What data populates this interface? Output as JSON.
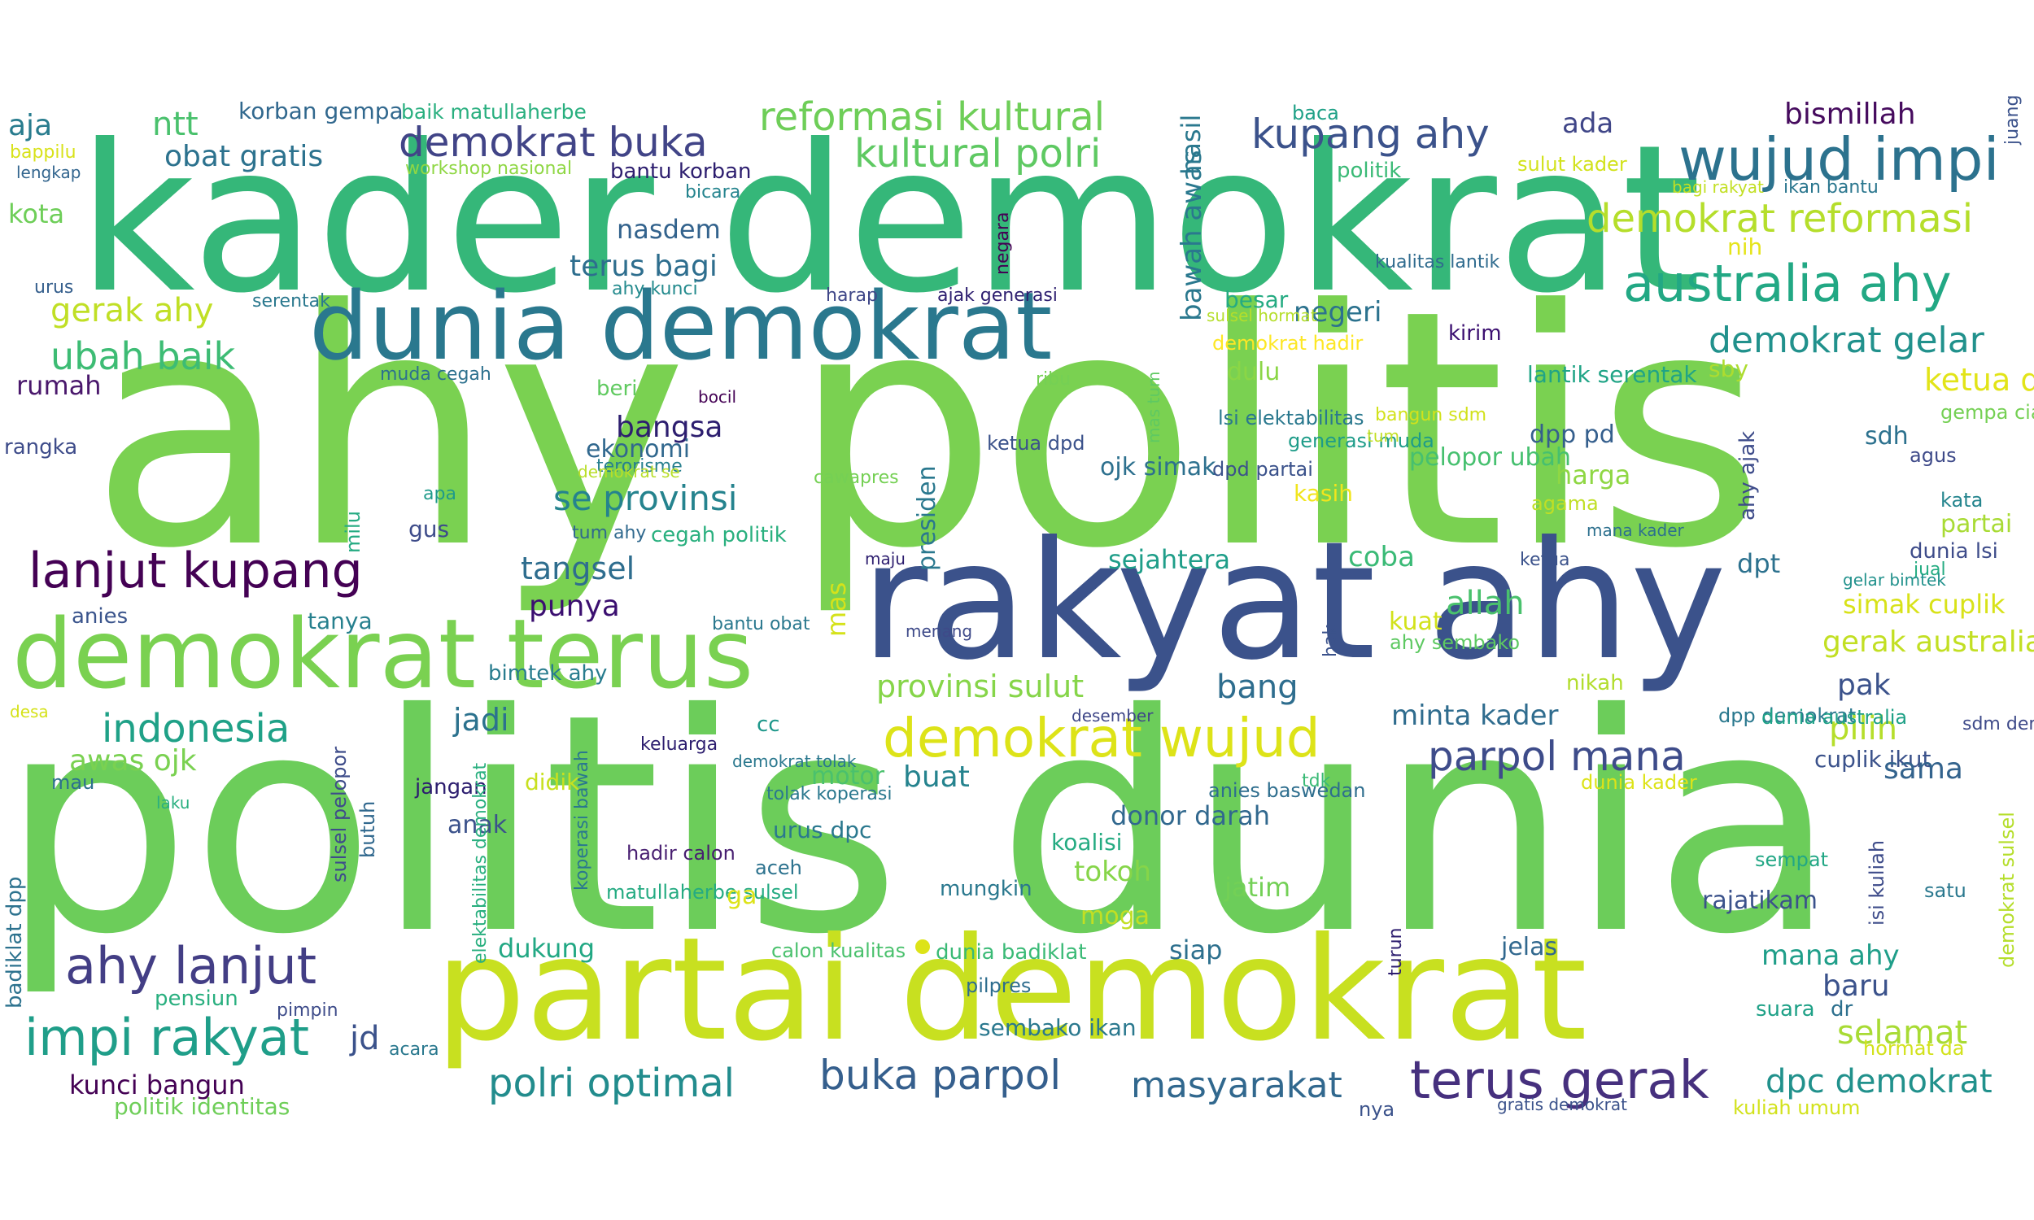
{
  "words": [
    {
      "text": "ahy politis",
      "color": "#7ad151"
    },
    {
      "text": "politis dunia",
      "color": "#6ccd5a"
    },
    {
      "text": "kader demokrat",
      "color": "#35b779"
    },
    {
      "text": "rakyat ahy",
      "color": "#3b528b"
    },
    {
      "text": "partai demokrat",
      "color": "#c8e020"
    },
    {
      "text": "dunia demokrat",
      "color": "#2a788e"
    },
    {
      "text": "demokrat terus",
      "color": "#7ad151"
    },
    {
      "text": "wujud impi",
      "color": "#2c728e"
    },
    {
      "text": "australia ahy",
      "color": "#22a884"
    },
    {
      "text": "demokrat wujud",
      "color": "#dde318"
    },
    {
      "text": "demokrat buka",
      "color": "#414487"
    },
    {
      "text": "reformasi kultural",
      "color": "#6ece58"
    },
    {
      "text": "kultural polri",
      "color": "#5ec962"
    },
    {
      "text": "kupang ahy",
      "color": "#3b528b"
    },
    {
      "text": "demokrat reformasi",
      "color": "#b5de2b"
    },
    {
      "text": "demokrat gelar",
      "color": "#21918c"
    },
    {
      "text": "lanjut kupang",
      "color": "#440154"
    },
    {
      "text": "ahy lanjut",
      "color": "#433e85"
    },
    {
      "text": "impi rakyat",
      "color": "#1f9e89"
    },
    {
      "text": "terus gerak",
      "color": "#46307e"
    },
    {
      "text": "buka parpol",
      "color": "#355f8d"
    },
    {
      "text": "parpol mana",
      "color": "#3e4c8a"
    },
    {
      "text": "polri optimal",
      "color": "#228c8d"
    },
    {
      "text": "masyarakat",
      "color": "#31688e"
    },
    {
      "text": "indonesia",
      "color": "#1fa187"
    },
    {
      "text": "ubah baik",
      "color": "#3dbc74"
    },
    {
      "text": "gerak ahy",
      "color": "#c0df25"
    },
    {
      "text": "obat gratis",
      "color": "#2c728e"
    },
    {
      "text": "ntt",
      "color": "#4ac16d"
    },
    {
      "text": "aja",
      "color": "#287c8e"
    },
    {
      "text": "korban gempa",
      "color": "#31688e"
    },
    {
      "text": "baik matullaherbe",
      "color": "#29af7f"
    },
    {
      "text": "workshop nasional",
      "color": "#8fd744"
    },
    {
      "text": "bantu korban",
      "color": "#2d1e6f"
    },
    {
      "text": "bicara",
      "color": "#25848e"
    },
    {
      "text": "nasdem",
      "color": "#33638d"
    },
    {
      "text": "terus bagi",
      "color": "#2e6e8e"
    },
    {
      "text": "kota",
      "color": "#6ece58"
    },
    {
      "text": "bappilu",
      "color": "#d8e219"
    },
    {
      "text": "lengkap",
      "color": "#32658e"
    },
    {
      "text": "urus",
      "color": "#355f8d"
    },
    {
      "text": "serentak",
      "color": "#2a788e"
    },
    {
      "text": "rumah",
      "color": "#4a186c"
    },
    {
      "text": "muda cegah",
      "color": "#2d718e"
    },
    {
      "text": "rangka",
      "color": "#3e4c8a"
    },
    {
      "text": "beri",
      "color": "#60ca60"
    },
    {
      "text": "bocil",
      "color": "#440154"
    },
    {
      "text": "ribu",
      "color": "#75d054"
    },
    {
      "text": "harap",
      "color": "#3f4788"
    },
    {
      "text": "ajak generasi",
      "color": "#2d1e6f"
    },
    {
      "text": "ahy kunci",
      "color": "#238a8d"
    },
    {
      "text": "baca",
      "color": "#1fa187"
    },
    {
      "text": "ada",
      "color": "#404688"
    },
    {
      "text": "bismillah",
      "color": "#460b5e"
    },
    {
      "text": "politik",
      "color": "#3aba76"
    },
    {
      "text": "sulut kader",
      "color": "#d2e21b"
    },
    {
      "text": "bagi rakyat",
      "color": "#c2df23"
    },
    {
      "text": "ikan bantu",
      "color": "#2a768e"
    },
    {
      "text": "nih",
      "color": "#e5e419"
    },
    {
      "text": "kualitas lantik",
      "color": "#2f6b8e"
    },
    {
      "text": "besar",
      "color": "#25ab82"
    },
    {
      "text": "negeri",
      "color": "#2c728e"
    },
    {
      "text": "sulsel hormat",
      "color": "#b5de2b"
    },
    {
      "text": "demokrat hadir",
      "color": "#fde725"
    },
    {
      "text": "kirim",
      "color": "#3b0f70"
    },
    {
      "text": "dulu",
      "color": "#8bd646"
    },
    {
      "text": "lantik serentak",
      "color": "#20a486"
    },
    {
      "text": "sby",
      "color": "#addc30"
    },
    {
      "text": "ketua dpc",
      "color": "#e2e418"
    },
    {
      "text": "gempa cianjur",
      "color": "#75d054"
    },
    {
      "text": "lsi elektabilitas",
      "color": "#2a788e"
    },
    {
      "text": "generasi muda",
      "color": "#1e9c89"
    },
    {
      "text": "bangun sdm",
      "color": "#d2e21b"
    },
    {
      "text": "tum",
      "color": "#c2df23"
    },
    {
      "text": "dpp pd",
      "color": "#355f8d"
    },
    {
      "text": "sdh",
      "color": "#2c718e"
    },
    {
      "text": "agus",
      "color": "#3e4a89"
    },
    {
      "text": "bangsa",
      "color": "#2d1e6f"
    },
    {
      "text": "ekonomi",
      "color": "#31688e"
    },
    {
      "text": "se provinsi",
      "color": "#25838e"
    },
    {
      "text": "terorisme",
      "color": "#277f8e"
    },
    {
      "text": "demokrat se",
      "color": "#b8de29"
    },
    {
      "text": "cawapres",
      "color": "#75d054"
    },
    {
      "text": "ketua dpd",
      "color": "#3b528b"
    },
    {
      "text": "ojk simak",
      "color": "#2d708e"
    },
    {
      "text": "dpd partai",
      "color": "#3b528b"
    },
    {
      "text": "pelopor ubah",
      "color": "#46c06f"
    },
    {
      "text": "kasih",
      "color": "#f1e51d"
    },
    {
      "text": "harga",
      "color": "#8fd744"
    },
    {
      "text": "agama",
      "color": "#c0df25"
    },
    {
      "text": "mana kader",
      "color": "#2d708e"
    },
    {
      "text": "kata",
      "color": "#25858e"
    },
    {
      "text": "partai",
      "color": "#a8db34"
    },
    {
      "text": "apa",
      "color": "#1f9a8a"
    },
    {
      "text": "gus",
      "color": "#3e4c8a"
    },
    {
      "text": "tum ahy",
      "color": "#30698e"
    },
    {
      "text": "cegah politik",
      "color": "#2ab07f"
    },
    {
      "text": "maju",
      "color": "#2d1e6f"
    },
    {
      "text": "tangsel",
      "color": "#2e6d8e"
    },
    {
      "text": "punya",
      "color": "#3b0f70"
    },
    {
      "text": "sejahtera",
      "color": "#1f9e89"
    },
    {
      "text": "coba",
      "color": "#3aba76"
    },
    {
      "text": "ketua",
      "color": "#3b528b"
    },
    {
      "text": "dpt",
      "color": "#2c718e"
    },
    {
      "text": "dunia lsi",
      "color": "#3e4c8a"
    },
    {
      "text": "jual",
      "color": "#25ac82"
    },
    {
      "text": "gelar bimtek",
      "color": "#21918c"
    },
    {
      "text": "simak cuplik",
      "color": "#d8e219"
    },
    {
      "text": "gerak australia",
      "color": "#c2df23"
    },
    {
      "text": "anies",
      "color": "#3a548c"
    },
    {
      "text": "tanya",
      "color": "#27808e"
    },
    {
      "text": "bantu obat",
      "color": "#2a788e"
    },
    {
      "text": "menang",
      "color": "#3e4a89"
    },
    {
      "text": "allah",
      "color": "#4ac16d"
    },
    {
      "text": "kuat",
      "color": "#d2e21b"
    },
    {
      "text": "ahy sembako",
      "color": "#5ec962"
    },
    {
      "text": "bimtek ahy",
      "color": "#287c8e"
    },
    {
      "text": "provinsi sulut",
      "color": "#86d549"
    },
    {
      "text": "bang",
      "color": "#2e6d8e"
    },
    {
      "text": "nikah",
      "color": "#b2dd2d"
    },
    {
      "text": "pak",
      "color": "#3b528b"
    },
    {
      "text": "desa",
      "color": "#d5e21a"
    },
    {
      "text": "jadi",
      "color": "#2c728e"
    },
    {
      "text": "cc",
      "color": "#1f988b"
    },
    {
      "text": "desember",
      "color": "#3f4788"
    },
    {
      "text": "minta kader",
      "color": "#2f6c8e"
    },
    {
      "text": "pilih",
      "color": "#b5de2b"
    },
    {
      "text": "dpp demokrat",
      "color": "#2a788e"
    },
    {
      "text": "dunia australia",
      "color": "#1fa187"
    },
    {
      "text": "sdm demokrat",
      "color": "#3e4a89"
    },
    {
      "text": "awas ojk",
      "color": "#7ad151"
    },
    {
      "text": "keluarga",
      "color": "#2d1e6f"
    },
    {
      "text": "demokrat tolak",
      "color": "#2a788e"
    },
    {
      "text": "buat",
      "color": "#25838e"
    },
    {
      "text": "motor",
      "color": "#4ac16d"
    },
    {
      "text": "cuplik ikut",
      "color": "#3b528b"
    },
    {
      "text": "sama",
      "color": "#33638d"
    },
    {
      "text": "mau",
      "color": "#2d708e"
    },
    {
      "text": "jangan",
      "color": "#2d1e6f"
    },
    {
      "text": "didik",
      "color": "#c8e020"
    },
    {
      "text": "tolak koperasi",
      "color": "#2a788e"
    },
    {
      "text": "anies baswedan",
      "color": "#2e6e8e"
    },
    {
      "text": "tdk",
      "color": "#3aba76"
    },
    {
      "text": "dunia kader",
      "color": "#dde318"
    },
    {
      "text": "laku",
      "color": "#29af7f"
    },
    {
      "text": "anak",
      "color": "#3b528b"
    },
    {
      "text": "urus dpc",
      "color": "#2a788e"
    },
    {
      "text": "donor darah",
      "color": "#31688e"
    },
    {
      "text": "koalisi",
      "color": "#25ab82"
    },
    {
      "text": "hadir calon",
      "color": "#481f71"
    },
    {
      "text": "aceh",
      "color": "#2c728e"
    },
    {
      "text": "tokoh",
      "color": "#86d549"
    },
    {
      "text": "sempat",
      "color": "#22a785"
    },
    {
      "text": "matullaherbe sulsel",
      "color": "#25ab82"
    },
    {
      "text": "ga",
      "color": "#dde318"
    },
    {
      "text": "mungkin",
      "color": "#2a788e"
    },
    {
      "text": "jatim",
      "color": "#73d056"
    },
    {
      "text": "satu",
      "color": "#2a788e"
    },
    {
      "text": "rajatikam",
      "color": "#3b528b"
    },
    {
      "text": "moga",
      "color": "#c2df23"
    },
    {
      "text": "dukung",
      "color": "#22a884"
    },
    {
      "text": "calon kualitas",
      "color": "#4ac16d"
    },
    {
      "text": "dunia badiklat",
      "color": "#3aba76"
    },
    {
      "text": "siap",
      "color": "#2d708e"
    },
    {
      "text": "jelas",
      "color": "#31688e"
    },
    {
      "text": "mana ahy",
      "color": "#1f9e89"
    },
    {
      "text": "baru",
      "color": "#3b528b"
    },
    {
      "text": "pensiun",
      "color": "#29af7f"
    },
    {
      "text": "pimpin",
      "color": "#3e4c8a"
    },
    {
      "text": "pilpres",
      "color": "#2e6d8e"
    },
    {
      "text": "suara",
      "color": "#1fa187"
    },
    {
      "text": "dr",
      "color": "#2d708e"
    },
    {
      "text": "selamat",
      "color": "#a8db34"
    },
    {
      "text": "jd",
      "color": "#3b528b"
    },
    {
      "text": "acara",
      "color": "#2a788e"
    },
    {
      "text": "sembako ikan",
      "color": "#2a788e"
    },
    {
      "text": "hormat da",
      "color": "#d2e21b"
    },
    {
      "text": "kunci bangun",
      "color": "#440154"
    },
    {
      "text": "dpc demokrat",
      "color": "#21918c"
    },
    {
      "text": "politik identitas",
      "color": "#6ece58"
    },
    {
      "text": "nya",
      "color": "#3b528b"
    },
    {
      "text": "gratis demokrat",
      "color": "#3b528b"
    },
    {
      "text": "kuliah umum",
      "color": "#d2e21b"
    },
    {
      "text": "hasil",
      "color": "#2a788e"
    },
    {
      "text": "bawah awas",
      "color": "#2a788e"
    },
    {
      "text": "negara",
      "color": "#440154"
    },
    {
      "text": "mas tum",
      "color": "#5ec962"
    },
    {
      "text": "ahy ajak",
      "color": "#3e4c8a"
    },
    {
      "text": "juang",
      "color": "#3b528b"
    },
    {
      "text": "milu",
      "color": "#25ab82"
    },
    {
      "text": "presiden",
      "color": "#2a788e"
    },
    {
      "text": "mas",
      "color": "#d5e21a"
    },
    {
      "text": "hak",
      "color": "#3b528b"
    },
    {
      "text": "butuh",
      "color": "#31688e"
    },
    {
      "text": "sulsel pelopor",
      "color": "#3e4c8a"
    },
    {
      "text": "koperasi bawah",
      "color": "#2a788e"
    },
    {
      "text": "badiklat dpp",
      "color": "#2c728e"
    },
    {
      "text": "elektabilitas demokrat",
      "color": "#29af7f"
    },
    {
      "text": "isi kuliah",
      "color": "#3e4c8a"
    },
    {
      "text": "turun",
      "color": "#2d1e6f"
    },
    {
      "text": "demokrat sulsel",
      "color": "#b5de2b"
    }
  ]
}
